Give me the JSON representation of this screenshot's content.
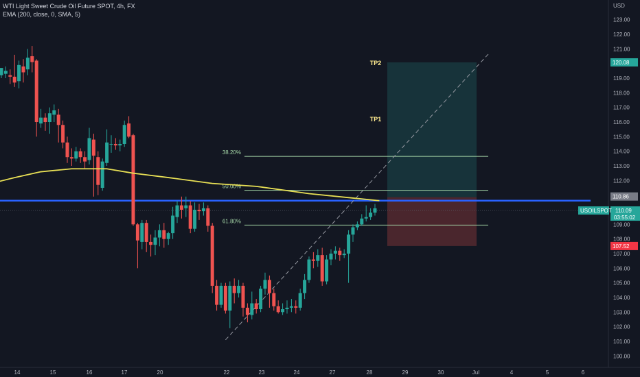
{
  "header": {
    "title": "WTI Light Sweet Crude Oil Future SPOT, 4h, FX",
    "indicator": "EMA (200, close, 0, SMA, 5)"
  },
  "axis": {
    "currency": "USD",
    "price_ticks": [
      "100.00",
      "101.00",
      "102.00",
      "103.00",
      "104.00",
      "105.00",
      "106.00",
      "107.00",
      "108.00",
      "109.00",
      "110.00",
      "111.00",
      "112.00",
      "113.00",
      "114.00",
      "115.00",
      "116.00",
      "117.00",
      "118.00",
      "119.00",
      "120.00",
      "121.00",
      "122.00",
      "123.00"
    ],
    "date_ticks": [
      "14",
      "15",
      "16",
      "17",
      "20",
      "22",
      "23",
      "24",
      "27",
      "28",
      "29",
      "30",
      "Jul",
      "4",
      "5",
      "6"
    ]
  },
  "labels": {
    "tp2": "TP2",
    "tp1": "TP1",
    "fib_382": "38.20%",
    "fib_50": "50.00%",
    "fib_618": "61.80%",
    "tp_price": "120.08",
    "entry_price": "110.86",
    "symbol": "USOILSPOT",
    "current_price": "110.09",
    "countdown": "03:55:02",
    "stop_price": "107.52"
  },
  "colors": {
    "background": "#131722",
    "up": "#26a69a",
    "down": "#ef5350",
    "ema": "#e8e055",
    "blue_line": "#2962ff",
    "fib": "#a5d6a7",
    "target_zone": "#26a69a",
    "stop_zone": "#ef5350",
    "text": "#b2b5be",
    "label_bg_current": "#26a69a",
    "label_bg_entry": "#787b86",
    "label_bg_stop": "#f23645"
  },
  "chart_data": {
    "type": "candlestick",
    "title": "WTI Light Sweet Crude Oil Future SPOT, 4h, FX",
    "ylabel": "USD",
    "ylim": [
      99.6,
      123.6
    ],
    "y_ticks": [
      100,
      101,
      102,
      103,
      104,
      105,
      106,
      107,
      108,
      109,
      110,
      111,
      112,
      113,
      114,
      115,
      116,
      117,
      118,
      119,
      120,
      121,
      122,
      123
    ],
    "x_ticks": [
      "14",
      "15",
      "16",
      "17",
      "20",
      "22",
      "23",
      "24",
      "27",
      "28",
      "29",
      "30",
      "Jul",
      "4",
      "5",
      "6"
    ],
    "candles": [
      [
        119.2,
        119.7,
        119.5,
        119.0
      ],
      [
        119.3,
        119.5,
        119.8,
        119.0
      ],
      [
        119.2,
        119.1,
        119.6,
        118.6
      ],
      [
        119.1,
        118.7,
        120.6,
        118.4
      ],
      [
        118.8,
        119.9,
        120.2,
        118.3
      ],
      [
        119.8,
        119.4,
        120.3,
        118.7
      ],
      [
        119.6,
        120.4,
        121.0,
        119.2
      ],
      [
        120.5,
        120.1,
        121.2,
        119.4
      ],
      [
        120.2,
        116.0,
        120.3,
        115.0
      ],
      [
        115.9,
        116.3,
        116.9,
        115.6
      ],
      [
        116.3,
        116.0,
        116.6,
        115.4
      ],
      [
        116.0,
        116.6,
        117.0,
        115.2
      ],
      [
        116.5,
        116.8,
        117.2,
        116.0
      ],
      [
        116.5,
        115.8,
        116.9,
        114.6
      ],
      [
        115.8,
        114.6,
        116.1,
        114.2
      ],
      [
        114.6,
        113.6,
        115.0,
        113.2
      ],
      [
        113.6,
        113.5,
        114.2,
        113.0
      ],
      [
        113.5,
        114.0,
        114.3,
        113.3
      ],
      [
        114.0,
        113.6,
        114.2,
        113.2
      ],
      [
        113.6,
        113.3,
        114.0,
        112.8
      ],
      [
        113.4,
        114.9,
        115.6,
        113.1
      ],
      [
        114.8,
        113.7,
        115.2,
        110.9
      ],
      [
        113.6,
        111.7,
        114.0,
        111.0
      ],
      [
        111.5,
        113.3,
        113.5,
        111.3
      ],
      [
        113.2,
        114.6,
        115.5,
        113.0
      ],
      [
        114.5,
        114.5,
        115.1,
        113.9
      ],
      [
        114.5,
        114.4,
        114.9,
        114.1
      ],
      [
        114.4,
        114.5,
        114.8,
        114.0
      ],
      [
        114.5,
        115.8,
        116.1,
        114.3
      ],
      [
        115.9,
        115.0,
        116.4,
        114.9
      ],
      [
        115.1,
        109.0,
        115.2,
        108.9
      ],
      [
        109.0,
        107.9,
        109.1,
        106.0
      ],
      [
        107.8,
        109.1,
        109.3,
        107.3
      ],
      [
        109.1,
        107.8,
        109.3,
        107.1
      ],
      [
        107.8,
        107.6,
        108.3,
        106.8
      ],
      [
        107.6,
        108.1,
        108.6,
        106.9
      ],
      [
        108.1,
        108.6,
        109.0,
        107.5
      ],
      [
        108.6,
        108.0,
        109.1,
        107.4
      ],
      [
        108.0,
        108.4,
        108.5,
        107.6
      ],
      [
        108.4,
        109.6,
        110.2,
        108.0
      ],
      [
        109.5,
        110.3,
        110.6,
        109.1
      ],
      [
        110.3,
        110.0,
        110.9,
        109.4
      ],
      [
        110.1,
        110.3,
        110.9,
        109.5
      ],
      [
        110.3,
        108.7,
        110.6,
        108.4
      ],
      [
        108.7,
        110.0,
        110.5,
        108.5
      ],
      [
        110.0,
        109.9,
        110.4,
        109.3
      ],
      [
        109.9,
        110.1,
        110.5,
        109.6
      ],
      [
        110.1,
        108.9,
        110.3,
        108.5
      ],
      [
        108.9,
        104.8,
        109.1,
        104.3
      ],
      [
        104.8,
        103.5,
        105.2,
        103.1
      ],
      [
        103.5,
        104.8,
        105.0,
        103.3
      ],
      [
        104.8,
        103.1,
        105.0,
        102.9
      ],
      [
        103.1,
        104.8,
        105.1,
        101.9
      ],
      [
        104.8,
        104.3,
        105.3,
        103.6
      ],
      [
        104.3,
        104.8,
        105.2,
        104.0
      ],
      [
        104.8,
        103.3,
        105.0,
        102.7
      ],
      [
        103.3,
        102.8,
        103.6,
        102.3
      ],
      [
        102.8,
        103.6,
        104.4,
        102.5
      ],
      [
        103.6,
        103.2,
        103.9,
        102.9
      ],
      [
        103.2,
        104.6,
        104.8,
        103.0
      ],
      [
        104.6,
        105.2,
        105.7,
        104.2
      ],
      [
        105.2,
        104.3,
        105.5,
        103.3
      ],
      [
        104.3,
        103.4,
        104.6,
        103.1
      ],
      [
        103.4,
        103.0,
        103.8,
        102.9
      ],
      [
        103.0,
        103.2,
        103.6,
        102.8
      ],
      [
        103.2,
        103.3,
        103.8,
        102.9
      ],
      [
        103.3,
        103.4,
        103.9,
        103.0
      ],
      [
        103.4,
        103.3,
        103.8,
        102.9
      ],
      [
        103.3,
        104.3,
        104.6,
        103.1
      ],
      [
        104.3,
        105.2,
        105.6,
        103.9
      ],
      [
        105.2,
        106.6,
        106.8,
        105.0
      ],
      [
        106.6,
        106.5,
        107.1,
        106.0
      ],
      [
        106.5,
        106.9,
        107.3,
        106.1
      ],
      [
        106.9,
        105.1,
        107.4,
        104.8
      ],
      [
        105.1,
        106.6,
        106.9,
        104.9
      ],
      [
        106.6,
        107.0,
        107.3,
        106.2
      ],
      [
        107.0,
        107.2,
        107.5,
        106.6
      ],
      [
        107.2,
        106.9,
        107.4,
        106.5
      ],
      [
        106.9,
        107.0,
        107.3,
        106.7
      ],
      [
        107.0,
        108.3,
        108.6,
        105.0
      ],
      [
        108.3,
        108.8,
        109.0,
        107.8
      ],
      [
        108.8,
        109.0,
        109.2,
        108.6
      ],
      [
        109.0,
        109.4,
        109.7,
        108.9
      ],
      [
        109.4,
        109.5,
        110.3,
        109.2
      ],
      [
        109.5,
        109.8,
        110.1,
        109.3
      ],
      [
        109.8,
        110.1,
        110.4,
        109.6
      ]
    ],
    "ema200": [
      [
        -1,
        111.9
      ],
      [
        3,
        112.2
      ],
      [
        9,
        112.6
      ],
      [
        16,
        112.8
      ],
      [
        24,
        112.8
      ],
      [
        30,
        112.5
      ],
      [
        38,
        112.2
      ],
      [
        48,
        111.8
      ],
      [
        58,
        111.6
      ],
      [
        70,
        111.1
      ],
      [
        80,
        110.8
      ],
      [
        86,
        110.62
      ]
    ],
    "horizontal_lines": [
      {
        "label": "38.20%",
        "price": 113.65
      },
      {
        "label": "50.00%",
        "price": 111.33
      },
      {
        "label": "61.80%",
        "price": 108.95
      },
      {
        "price": 110.62
      }
    ],
    "dashed_trendline": [
      [
        51,
        101.1
      ],
      [
        103,
        120.5
      ]
    ],
    "long_position": {
      "entry": 110.86,
      "take_profit": 120.08,
      "stop": 107.52
    },
    "annotations": [
      "TP1",
      "TP2"
    ]
  }
}
